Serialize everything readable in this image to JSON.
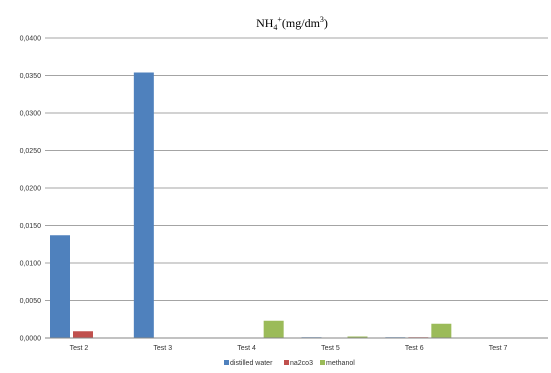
{
  "chart_data": {
    "type": "bar",
    "title": {
      "main": "NH",
      "sub": "4",
      "sup": "+",
      "unit_start": "(mg/dm",
      "unit_sup": "3",
      "unit_end": ")"
    },
    "categories": [
      "Test 2",
      "Test 3",
      "Test 4",
      "Test 5",
      "Test 6",
      "Test 7"
    ],
    "series": [
      {
        "name": "distilled water",
        "color": "#4F81BD",
        "values": [
          0.0137,
          0.0354,
          0,
          0.0001,
          0.0001,
          0
        ]
      },
      {
        "name": "na2co3",
        "color": "#C0504D",
        "values": [
          0.0009,
          0,
          0,
          0,
          0.0001,
          0
        ]
      },
      {
        "name": "methanol",
        "color": "#9BBB59",
        "values": [
          0,
          0,
          0.0023,
          0.0002,
          0.0019,
          0
        ]
      }
    ],
    "ylim": [
      0,
      0.04
    ],
    "yticks": [
      "0,0000",
      "0,0050",
      "0,0100",
      "0,0150",
      "0,0200",
      "0,0250",
      "0,0300",
      "0,0350",
      "0,0400"
    ],
    "grid": true,
    "legend_position": "bottom"
  }
}
